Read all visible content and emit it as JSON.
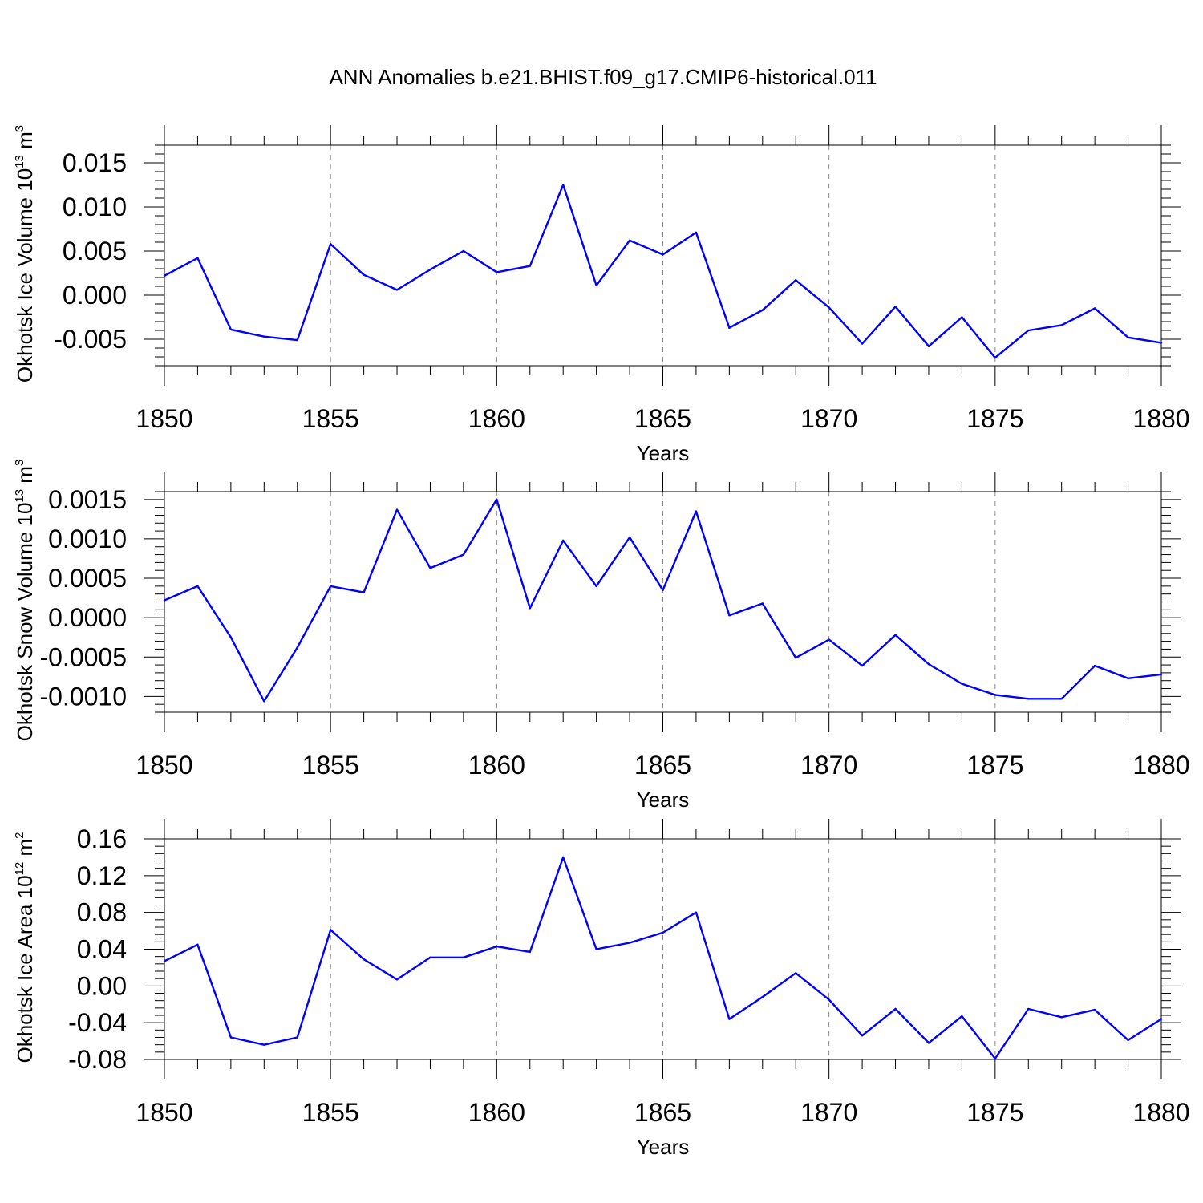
{
  "title": "ANN Anomalies b.e21.BHIST.f09_g17.CMIP6-historical.011",
  "colors": {
    "line": "#0000ff",
    "grid": "#888888",
    "frame": "#000000"
  },
  "chart_data": [
    {
      "type": "line",
      "ylabel": {
        "text": "Okhotsk Ice Volume 10",
        "exp": "13",
        "unit": " m",
        "unit_exp": "3"
      },
      "xlabel": "Years",
      "xlim": [
        1850,
        1880
      ],
      "ylim": [
        -0.008,
        0.017
      ],
      "grid": "vertical dashed every 5 years",
      "yticks": [
        -0.005,
        0.0,
        0.005,
        0.01,
        0.015
      ],
      "ytick_labels": [
        "-0.005",
        "0.000",
        "0.005",
        "0.010",
        "0.015"
      ],
      "xticks": [
        1850,
        1855,
        1860,
        1865,
        1870,
        1875,
        1880
      ],
      "xtick_labels": [
        "1850",
        "1855",
        "1860",
        "1865",
        "1870",
        "1875",
        "1880"
      ],
      "x": [
        1850,
        1851,
        1852,
        1853,
        1854,
        1855,
        1856,
        1857,
        1858,
        1859,
        1860,
        1861,
        1862,
        1863,
        1864,
        1865,
        1866,
        1867,
        1868,
        1869,
        1870,
        1871,
        1872,
        1873,
        1874,
        1875,
        1876,
        1877,
        1878,
        1879,
        1880
      ],
      "y": [
        0.0022,
        0.0042,
        -0.0039,
        -0.0047,
        -0.0051,
        0.0058,
        0.0023,
        0.0006,
        0.0029,
        0.005,
        0.0026,
        0.0033,
        0.0125,
        0.0011,
        0.0062,
        0.0046,
        0.0071,
        -0.0037,
        -0.0017,
        0.0017,
        -0.0014,
        -0.0055,
        -0.0013,
        -0.0058,
        -0.0025,
        -0.0071,
        -0.004,
        -0.0034,
        -0.0015,
        -0.0048,
        -0.0054
      ]
    },
    {
      "type": "line",
      "ylabel": {
        "text": "Okhotsk Snow Volume 10",
        "exp": "13",
        "unit": " m",
        "unit_exp": "3"
      },
      "xlabel": "Years",
      "xlim": [
        1850,
        1880
      ],
      "ylim": [
        -0.0012,
        0.0016
      ],
      "grid": "vertical dashed every 5 years",
      "yticks": [
        -0.001,
        -0.0005,
        0.0,
        0.0005,
        0.001,
        0.0015
      ],
      "ytick_labels": [
        "-0.0010",
        "-0.0005",
        "0.0000",
        "0.0005",
        "0.0010",
        "0.0015"
      ],
      "xticks": [
        1850,
        1855,
        1860,
        1865,
        1870,
        1875,
        1880
      ],
      "xtick_labels": [
        "1850",
        "1855",
        "1860",
        "1865",
        "1870",
        "1875",
        "1880"
      ],
      "x": [
        1850,
        1851,
        1852,
        1853,
        1854,
        1855,
        1856,
        1857,
        1858,
        1859,
        1860,
        1861,
        1862,
        1863,
        1864,
        1865,
        1866,
        1867,
        1868,
        1869,
        1870,
        1871,
        1872,
        1873,
        1874,
        1875,
        1876,
        1877,
        1878,
        1879,
        1880
      ],
      "y": [
        0.00022,
        0.0004,
        -0.00025,
        -0.00106,
        -0.00038,
        0.0004,
        0.00032,
        0.00137,
        0.00063,
        0.0008,
        0.0015,
        0.00012,
        0.00098,
        0.0004,
        0.00102,
        0.00035,
        0.00135,
        3e-05,
        0.00018,
        -0.00051,
        -0.00028,
        -0.00061,
        -0.00022,
        -0.00059,
        -0.00084,
        -0.00098,
        -0.00103,
        -0.00103,
        -0.00061,
        -0.00077,
        -0.00072
      ]
    },
    {
      "type": "line",
      "ylabel": {
        "text": "Okhotsk Ice Area 10",
        "exp": "12",
        "unit": " m",
        "unit_exp": "2"
      },
      "xlabel": "Years",
      "xlim": [
        1850,
        1880
      ],
      "ylim": [
        -0.08,
        0.16
      ],
      "grid": "vertical dashed every 5 years",
      "yticks": [
        -0.08,
        -0.04,
        0.0,
        0.04,
        0.08,
        0.12,
        0.16
      ],
      "ytick_labels": [
        "-0.08",
        "-0.04",
        "0.00",
        "0.04",
        "0.08",
        "0.12",
        "0.16"
      ],
      "xticks": [
        1850,
        1855,
        1860,
        1865,
        1870,
        1875,
        1880
      ],
      "xtick_labels": [
        "1850",
        "1855",
        "1860",
        "1865",
        "1870",
        "1875",
        "1880"
      ],
      "x": [
        1850,
        1851,
        1852,
        1853,
        1854,
        1855,
        1856,
        1857,
        1858,
        1859,
        1860,
        1861,
        1862,
        1863,
        1864,
        1865,
        1866,
        1867,
        1868,
        1869,
        1870,
        1871,
        1872,
        1873,
        1874,
        1875,
        1876,
        1877,
        1878,
        1879,
        1880
      ],
      "y": [
        0.027,
        0.045,
        -0.056,
        -0.064,
        -0.056,
        0.061,
        0.029,
        0.007,
        0.031,
        0.031,
        0.043,
        0.037,
        0.14,
        0.04,
        0.047,
        0.058,
        0.08,
        -0.036,
        -0.012,
        0.014,
        -0.015,
        -0.054,
        -0.025,
        -0.062,
        -0.033,
        -0.079,
        -0.025,
        -0.034,
        -0.026,
        -0.059,
        -0.036
      ]
    }
  ]
}
